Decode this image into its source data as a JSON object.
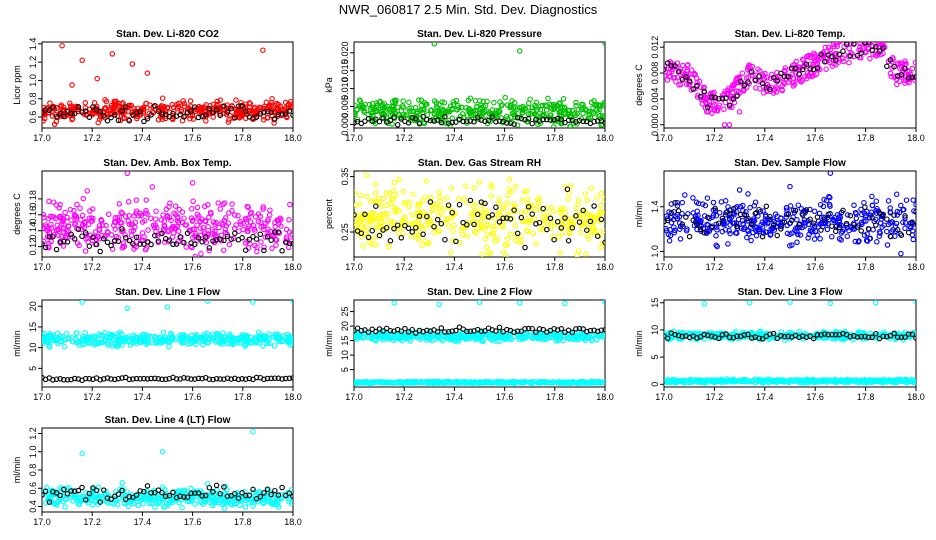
{
  "title": "NWR_060817  2.5 Min. Std. Dev. Diagnostics",
  "chart_data": [
    {
      "type": "scatter",
      "title": "Stan. Dev. Li-820 CO2",
      "ylabel": "Licor ppm",
      "xlim": [
        17.0,
        18.0
      ],
      "ylim": [
        0.48,
        1.42
      ],
      "xticks": [
        "17.0",
        "17.2",
        "17.4",
        "17.6",
        "17.8",
        "18.0"
      ],
      "yticks": [
        0.6,
        0.8,
        1.0,
        1.2,
        1.4
      ],
      "ytick_labels": [
        "0.6",
        "0.8",
        "1.0",
        "1.2",
        "1.4"
      ],
      "series": [
        {
          "color": "#ff0000",
          "band": [
            0.56,
            0.78
          ],
          "outliers": [
            [
              17.08,
              1.38
            ],
            [
              17.16,
              1.22
            ],
            [
              17.22,
              1.02
            ],
            [
              17.28,
              1.29
            ],
            [
              17.36,
              1.18
            ],
            [
              17.42,
              1.08
            ],
            [
              17.88,
              1.33
            ],
            [
              17.12,
              0.95
            ],
            [
              17.05,
              0.52
            ]
          ]
        },
        {
          "color": "#000000",
          "band": [
            0.56,
            0.72
          ]
        }
      ]
    },
    {
      "type": "scatter",
      "title": "Stan. Dev. Li-820 Pressure",
      "ylabel": "kPa",
      "xlim": [
        17.0,
        18.0
      ],
      "ylim": [
        -0.001,
        0.023
      ],
      "xticks": [
        "17.0",
        "17.2",
        "17.4",
        "17.6",
        "17.8",
        "18.0"
      ],
      "yticks": [
        0.0,
        0.005,
        0.01,
        0.015,
        0.02
      ],
      "ytick_labels": [
        "0.000",
        "0.005",
        "0.010",
        "0.015",
        "0.020"
      ],
      "series": [
        {
          "color": "#00c000",
          "band": [
            0.0,
            0.007
          ],
          "outliers": [
            [
              17.32,
              0.0225
            ],
            [
              17.66,
              0.0205
            ],
            [
              18.0,
              0.0227
            ]
          ]
        },
        {
          "color": "#000000",
          "band": [
            0.0,
            0.002
          ]
        }
      ]
    },
    {
      "type": "scatter",
      "title": "Stan. Dev. Li-820 Temp.",
      "ylabel": "degrees C",
      "xlim": [
        17.0,
        18.0
      ],
      "ylim": [
        -0.0005,
        0.0128
      ],
      "xticks": [
        "17.0",
        "17.2",
        "17.4",
        "17.6",
        "17.8",
        "18.0"
      ],
      "yticks": [
        0.0,
        0.004,
        0.008,
        0.012
      ],
      "ytick_labels": [
        "0.000",
        "0.004",
        "0.008",
        "0.012"
      ],
      "series": [
        {
          "color": "#ff00ff",
          "curve": [
            [
              17.0,
              0.0085
            ],
            [
              17.1,
              0.0075
            ],
            [
              17.18,
              0.003
            ],
            [
              17.26,
              0.004
            ],
            [
              17.34,
              0.008
            ],
            [
              17.42,
              0.006
            ],
            [
              17.5,
              0.0075
            ],
            [
              17.6,
              0.0095
            ],
            [
              17.7,
              0.0112
            ],
            [
              17.8,
              0.0118
            ],
            [
              17.86,
              0.0115
            ],
            [
              17.92,
              0.008
            ],
            [
              18.0,
              0.0085
            ]
          ],
          "spread": 0.0018,
          "outliers": [
            [
              17.24,
              0.0
            ],
            [
              17.26,
              0.0
            ],
            [
              17.3,
              0.002
            ]
          ]
        },
        {
          "color": "#000000",
          "curve": [
            [
              17.0,
              0.0085
            ],
            [
              17.1,
              0.0075
            ],
            [
              17.18,
              0.003
            ],
            [
              17.26,
              0.004
            ],
            [
              17.34,
              0.008
            ],
            [
              17.42,
              0.006
            ],
            [
              17.5,
              0.0075
            ],
            [
              17.6,
              0.0095
            ],
            [
              17.7,
              0.0112
            ],
            [
              17.8,
              0.0118
            ],
            [
              17.86,
              0.0115
            ],
            [
              17.92,
              0.008
            ],
            [
              18.0,
              0.0085
            ]
          ],
          "spread": 0.0012
        }
      ]
    },
    {
      "type": "scatter",
      "title": "Stan. Dev. Amb. Box Temp.",
      "ylabel": "degrees C",
      "xlim": [
        17.0,
        18.0
      ],
      "ylim": [
        0.107,
        0.215
      ],
      "xticks": [
        "17.0",
        "17.2",
        "17.4",
        "17.6",
        "17.8",
        "18.0"
      ],
      "yticks": [
        0.12,
        0.14,
        0.16,
        0.18
      ],
      "ytick_labels": [
        "0.12",
        "0.14",
        "0.16",
        "0.18"
      ],
      "series": [
        {
          "color": "#ff00ff",
          "band": [
            0.115,
            0.175
          ],
          "outliers": [
            [
              17.34,
              0.212
            ],
            [
              17.44,
              0.195
            ],
            [
              17.6,
              0.2
            ],
            [
              17.18,
              0.19
            ]
          ]
        },
        {
          "color": "#000000",
          "band": [
            0.115,
            0.14
          ]
        }
      ]
    },
    {
      "type": "scatter",
      "title": "Stan. Dev. Gas Stream RH",
      "ylabel": "percent",
      "xlim": [
        17.0,
        18.0
      ],
      "ylim": [
        0.205,
        0.36
      ],
      "xticks": [
        "17.0",
        "17.2",
        "17.4",
        "17.6",
        "17.8",
        "18.0"
      ],
      "yticks": [
        0.25,
        0.35
      ],
      "ytick_labels": [
        "0.25",
        "0.35"
      ],
      "series": [
        {
          "color": "#ffff00",
          "band": [
            0.22,
            0.33
          ],
          "outliers": [
            [
              17.05,
              0.352
            ],
            [
              17.18,
              0.345
            ],
            [
              17.5,
              0.34
            ],
            [
              17.62,
              0.345
            ]
          ]
        },
        {
          "color": "#000000",
          "band": [
            0.23,
            0.31
          ],
          "outliers": [
            [
              17.85,
              0.327
            ]
          ]
        }
      ]
    },
    {
      "type": "scatter",
      "title": "Stan. Dev. Sample Flow",
      "ylabel": "ml/min",
      "xlim": [
        17.0,
        18.0
      ],
      "ylim": [
        0.95,
        1.72
      ],
      "xticks": [
        "17.0",
        "17.2",
        "17.4",
        "17.6",
        "17.8",
        "18.0"
      ],
      "yticks": [
        1.0,
        1.4
      ],
      "ytick_labels": [
        "1.0",
        "1.4"
      ],
      "series": [
        {
          "color": "#0000ff",
          "band": [
            1.08,
            1.48
          ],
          "outliers": [
            [
              17.66,
              1.7
            ],
            [
              17.3,
              1.55
            ],
            [
              17.94,
              0.98
            ],
            [
              17.5,
              1.58
            ]
          ]
        },
        {
          "color": "#000000",
          "band": [
            1.15,
            1.4
          ]
        }
      ]
    },
    {
      "type": "scatter",
      "title": "Stan. Dev. Line 1 Flow",
      "ylabel": "ml/min",
      "xlim": [
        17.0,
        18.0
      ],
      "ylim": [
        0.5,
        21.5
      ],
      "xticks": [
        "17.0",
        "17.2",
        "17.4",
        "17.6",
        "17.8",
        "18.0"
      ],
      "yticks": [
        5,
        10,
        15,
        20
      ],
      "ytick_labels": [
        "5",
        "10",
        "15",
        "20"
      ],
      "series": [
        {
          "color": "#00ffff",
          "band": [
            10.5,
            13.5
          ],
          "outliers": [
            [
              17.16,
              21.0
            ],
            [
              17.34,
              19.5
            ],
            [
              17.5,
              19.8
            ],
            [
              17.66,
              21.2
            ],
            [
              18.0,
              21.3
            ],
            [
              17.84,
              21.0
            ]
          ]
        },
        {
          "color": "#000000",
          "band": [
            2.2,
            2.8
          ]
        }
      ]
    },
    {
      "type": "scatter",
      "title": "Stan. Dev. Line 2 Flow",
      "ylabel": "ml/min",
      "xlim": [
        17.0,
        18.0
      ],
      "ylim": [
        -1,
        29
      ],
      "xticks": [
        "17.0",
        "17.2",
        "17.4",
        "17.6",
        "17.8",
        "18.0"
      ],
      "yticks": [
        5,
        10,
        15,
        20,
        25
      ],
      "ytick_labels": [
        "5",
        "10",
        "15",
        "20",
        "25"
      ],
      "series": [
        {
          "color": "#00ffff",
          "band": [
            15.0,
            18.0
          ],
          "outliers": [
            [
              17.16,
              28.0
            ],
            [
              17.34,
              27.5
            ],
            [
              17.5,
              28.2
            ],
            [
              17.66,
              28.0
            ],
            [
              18.0,
              28.3
            ],
            [
              17.84,
              27.8
            ]
          ]
        },
        {
          "color": "#00ffff",
          "band": [
            0.3,
            0.9
          ]
        },
        {
          "color": "#000000",
          "band": [
            17.6,
            19.6
          ]
        }
      ]
    },
    {
      "type": "scatter",
      "title": "Stan. Dev. Line 3 Flow",
      "ylabel": "ml/min",
      "xlim": [
        17.0,
        18.0
      ],
      "ylim": [
        -0.5,
        15.5
      ],
      "xticks": [
        "17.0",
        "17.2",
        "17.4",
        "17.6",
        "17.8",
        "18.0"
      ],
      "yticks": [
        0,
        5,
        10,
        15
      ],
      "ytick_labels": [
        "0",
        "5",
        "10",
        "15"
      ],
      "series": [
        {
          "color": "#00ffff",
          "band": [
            8.3,
            9.6
          ],
          "outliers": [
            [
              17.16,
              14.8
            ],
            [
              17.34,
              15.0
            ],
            [
              17.5,
              15.1
            ],
            [
              17.66,
              14.9
            ],
            [
              18.0,
              15.2
            ],
            [
              17.84,
              15.0
            ]
          ]
        },
        {
          "color": "#00ffff",
          "band": [
            0.3,
            0.9
          ]
        },
        {
          "color": "#000000",
          "band": [
            8.4,
            9.3
          ]
        }
      ]
    },
    {
      "type": "scatter",
      "title": "Stan. Dev. Line 4 (LT) Flow",
      "ylabel": "ml/min",
      "xlim": [
        17.0,
        18.0
      ],
      "ylim": [
        0.34,
        1.26
      ],
      "xticks": [
        "17.0",
        "17.2",
        "17.4",
        "17.6",
        "17.8",
        "18.0"
      ],
      "yticks": [
        0.4,
        0.6,
        0.8,
        1.0,
        1.2
      ],
      "ytick_labels": [
        "0.4",
        "0.6",
        "0.8",
        "1.0",
        "1.2"
      ],
      "series": [
        {
          "color": "#00ffff",
          "band": [
            0.4,
            0.6
          ],
          "outliers": [
            [
              17.16,
              0.98
            ],
            [
              17.48,
              1.0
            ],
            [
              17.84,
              1.22
            ],
            [
              17.66,
              0.65
            ],
            [
              17.32,
              0.66
            ]
          ]
        },
        {
          "color": "#000000",
          "band": [
            0.45,
            0.62
          ]
        }
      ]
    }
  ]
}
